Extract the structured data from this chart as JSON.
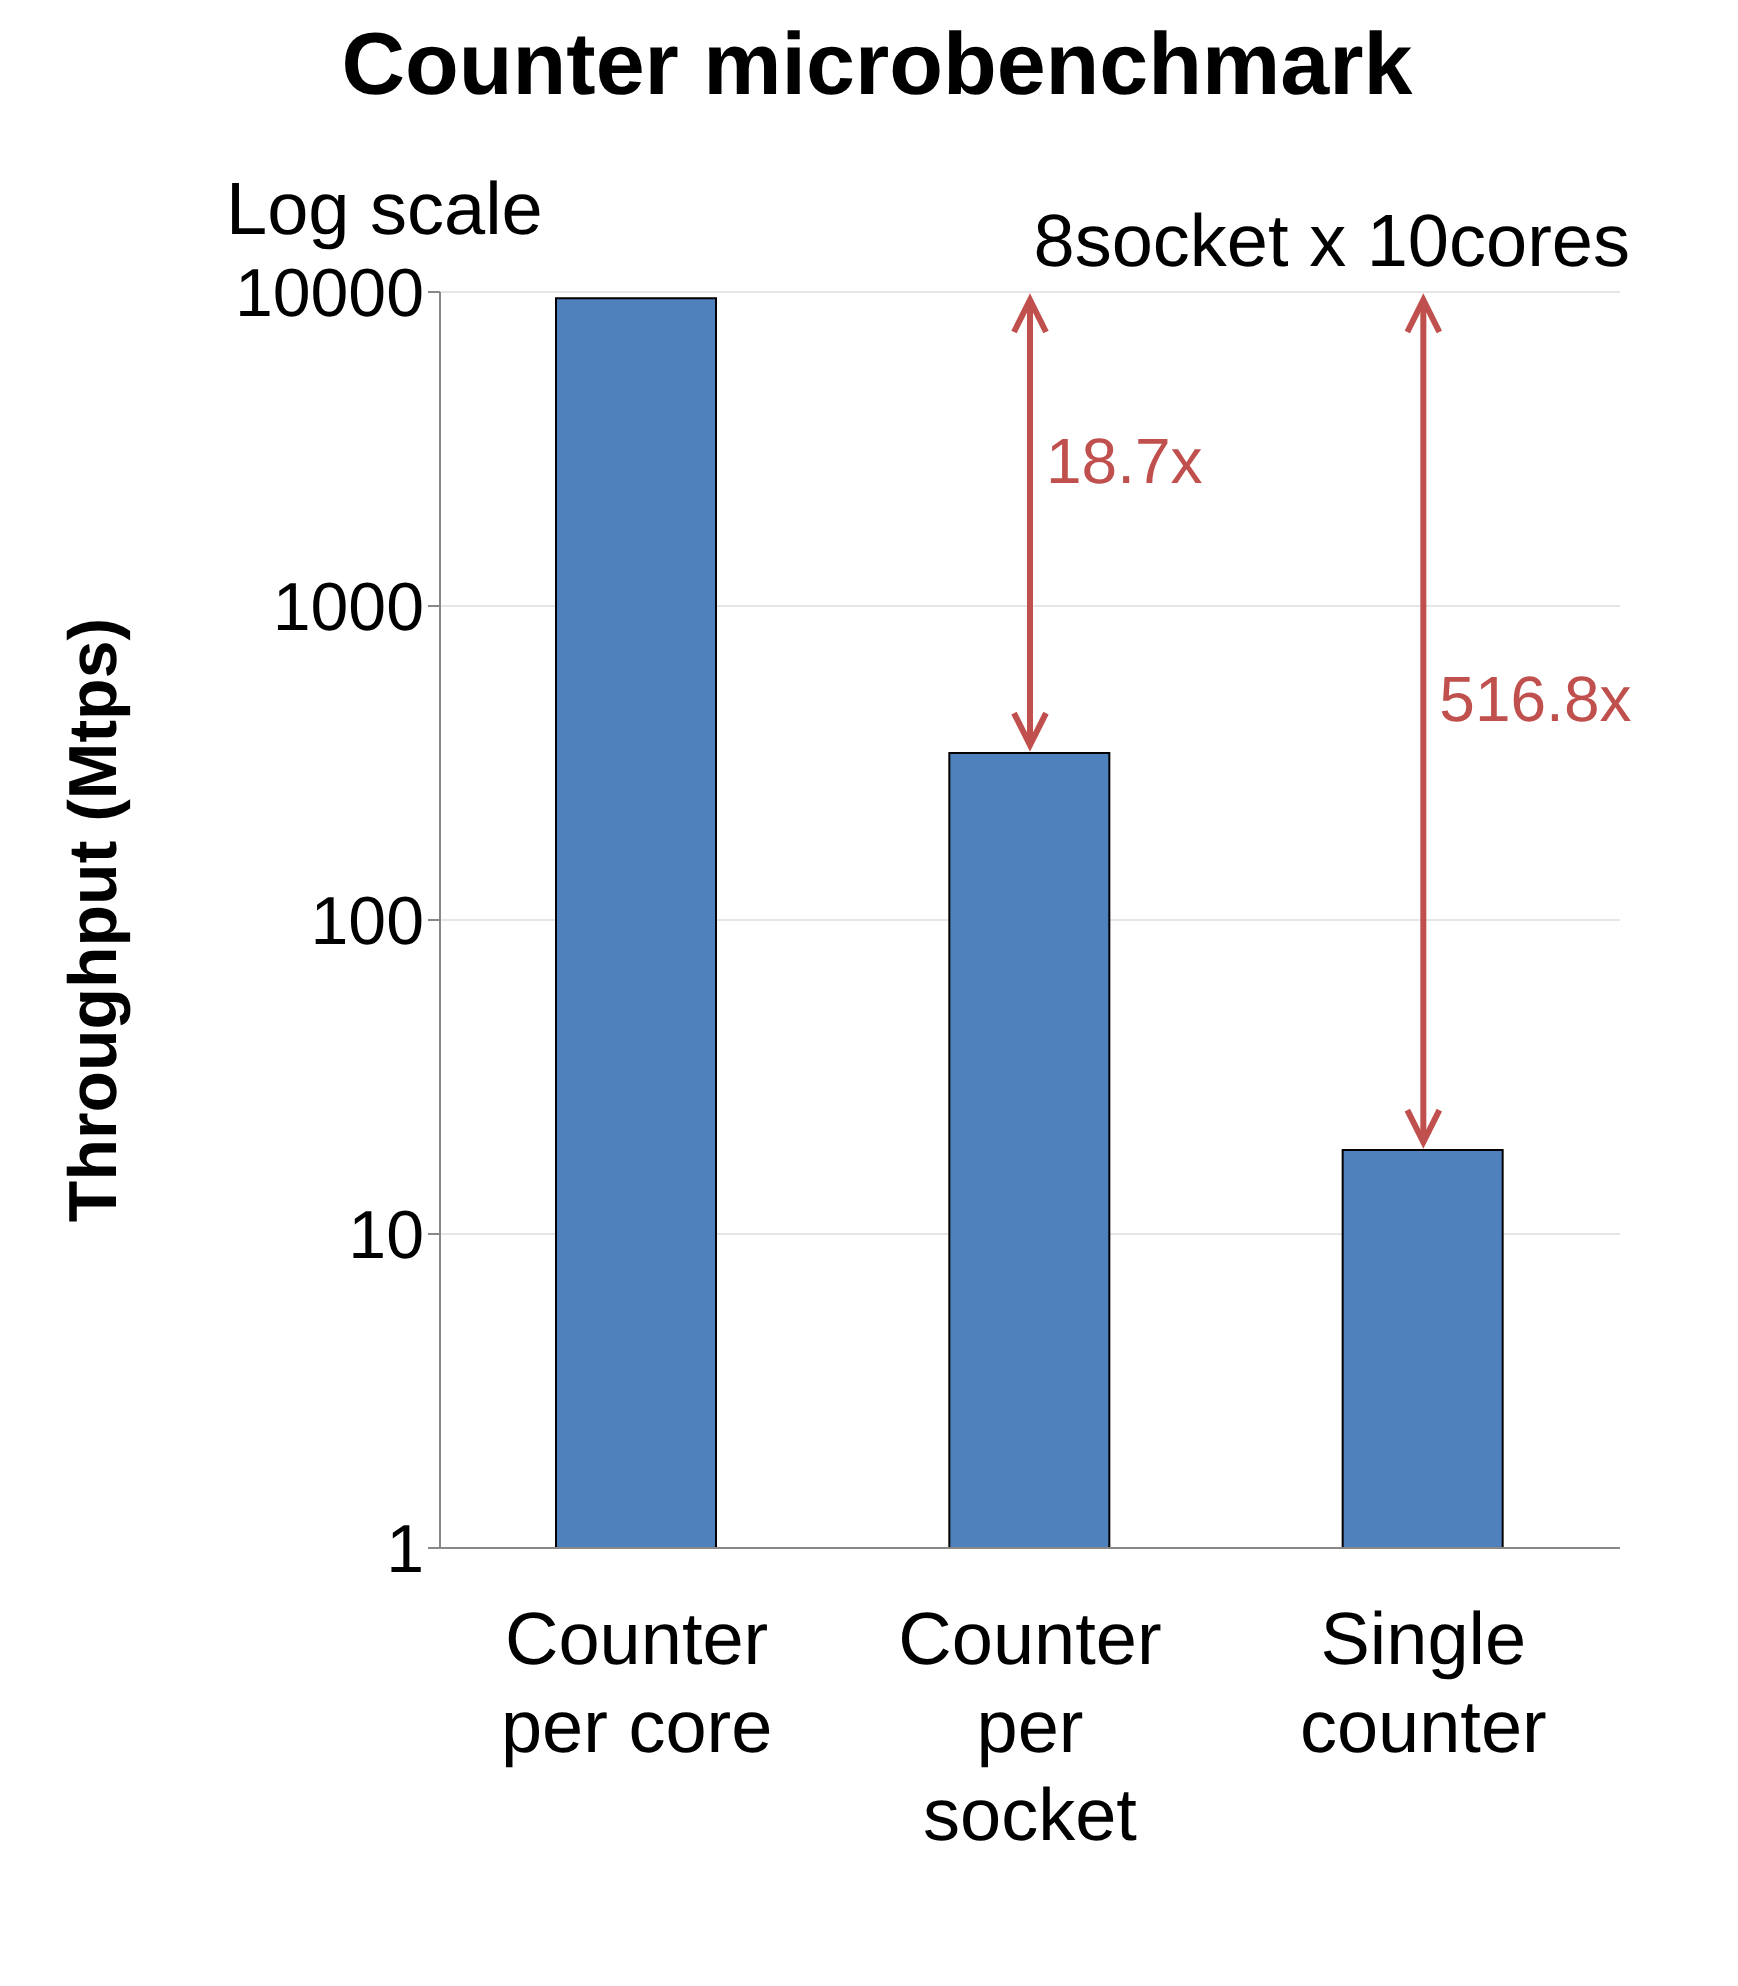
{
  "chart_data": {
    "type": "bar",
    "title": "Counter microbenchmark",
    "ylabel": "Throughput (Mtps)",
    "categories": [
      "Counter per core",
      "Counter per socket",
      "Single counter"
    ],
    "values": [
      9560,
      340,
      18.5
    ],
    "color": "#4f81bd",
    "log": true,
    "ylim": [
      1,
      10000
    ],
    "yticks": [
      1,
      10,
      100,
      1000,
      10000
    ],
    "grid": "y",
    "legend": false,
    "annotations": [
      "Log scale",
      "8socket x 10cores",
      "18.7x",
      "516.8x"
    ]
  }
}
